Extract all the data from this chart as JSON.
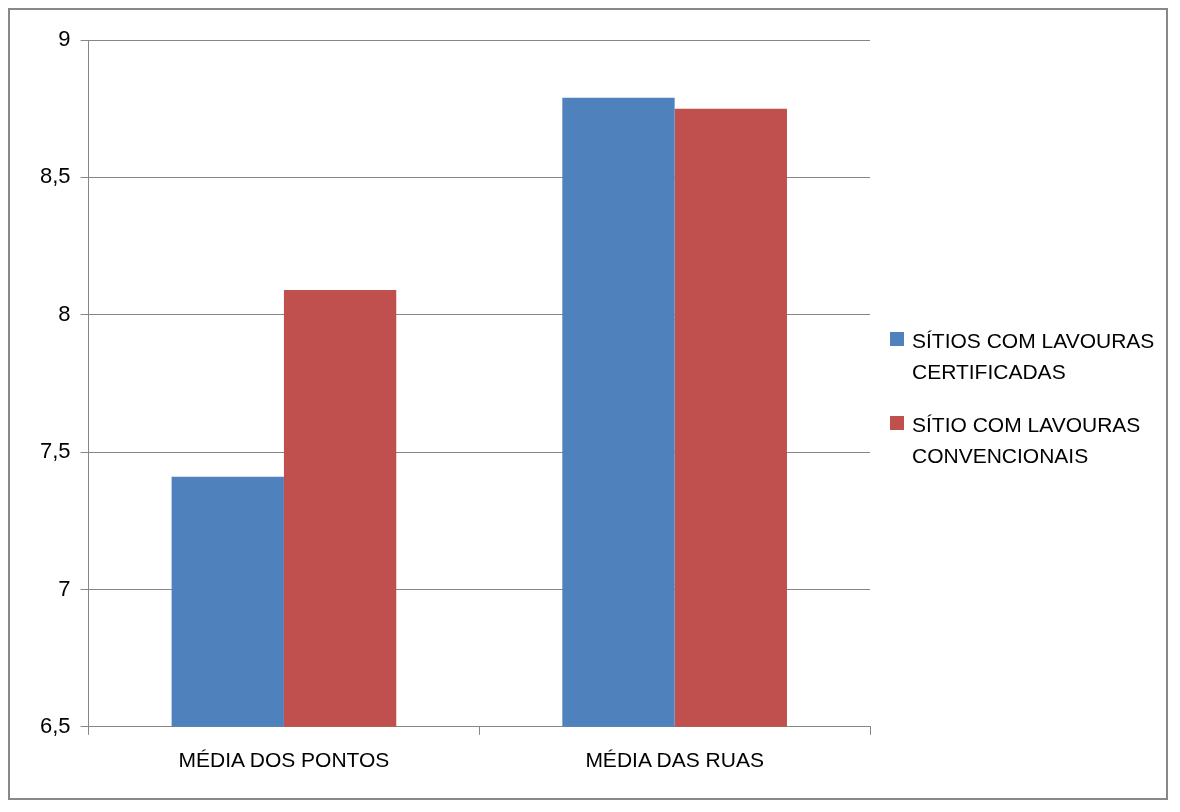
{
  "chart_data": {
    "type": "bar",
    "categories": [
      "MÉDIA DOS PONTOS",
      "MÉDIA DAS RUAS"
    ],
    "series": [
      {
        "name": "SÍTIOS COM LAVOURAS CERTIFICADAS",
        "color": "#4f81bd",
        "values": [
          7.41,
          8.79
        ]
      },
      {
        "name": "SÍTIO COM LAVOURAS CONVENCIONAIS",
        "color": "#c0504d",
        "values": [
          8.09,
          8.75
        ]
      }
    ],
    "ylim": [
      6.5,
      9
    ],
    "yticks": [
      {
        "value": 6.5,
        "label": "6,5"
      },
      7,
      {
        "value": 7.5,
        "label": "7,5"
      },
      8,
      {
        "value": 8.5,
        "label": "8,5"
      },
      9
    ],
    "grid": "y",
    "legend": "right"
  }
}
